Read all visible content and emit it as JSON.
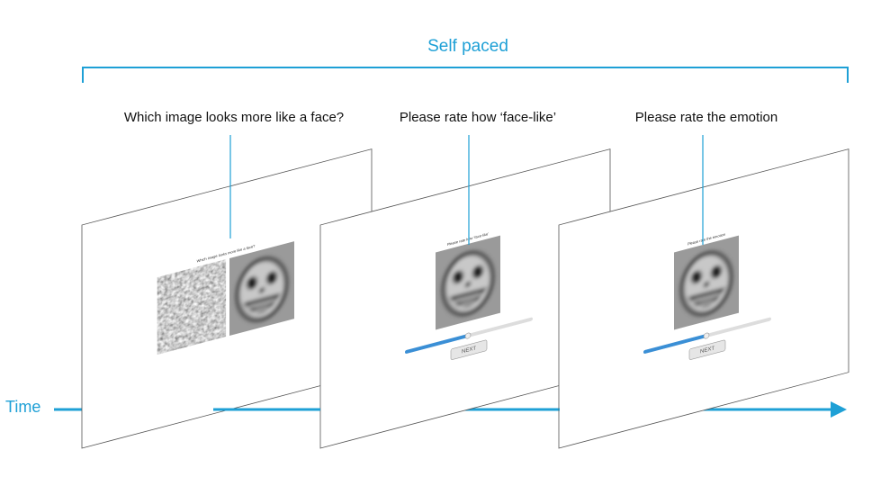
{
  "header": {
    "title": "Self paced"
  },
  "panels": [
    {
      "label": "Which image looks more like a face?"
    },
    {
      "label": "Please rate how ‘face-like’"
    },
    {
      "label": "Please rate the emotion"
    }
  ],
  "axis": {
    "label": "Time"
  },
  "button": "NEXT"
}
